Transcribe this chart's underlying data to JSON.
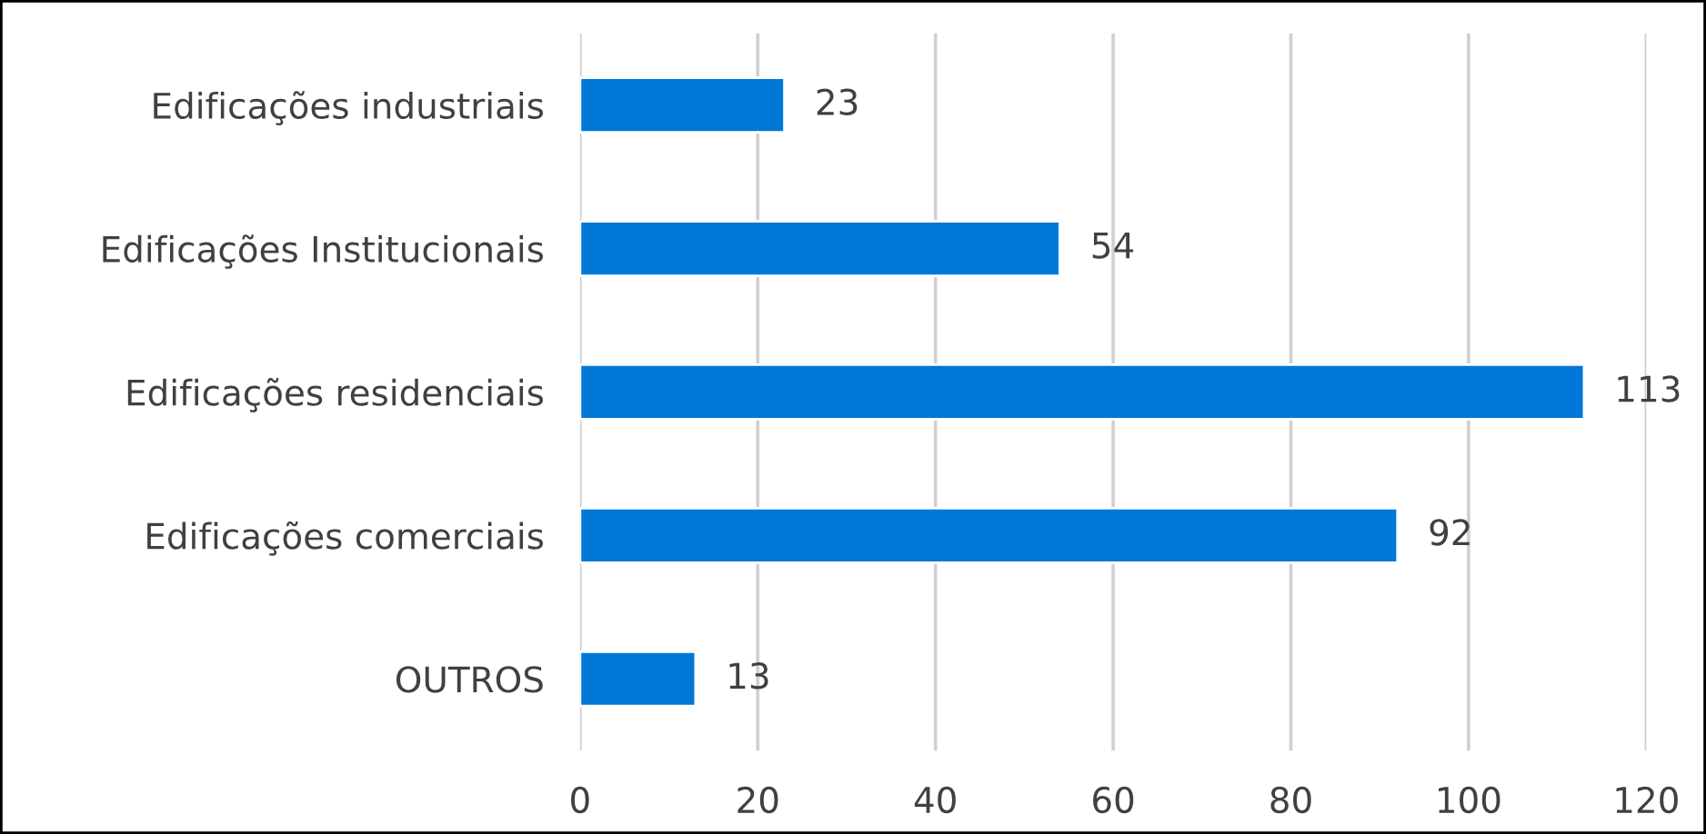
{
  "chart_data": {
    "type": "bar",
    "orientation": "horizontal",
    "categories": [
      "Edificações industriais",
      "Edificações Institucionais",
      "Edificações residenciais",
      "Edificações comerciais",
      "OUTROS"
    ],
    "values": [
      23,
      54,
      113,
      92,
      13
    ],
    "color": "#0078d7",
    "xlim": [
      0,
      120
    ],
    "xticks": [
      0,
      20,
      40,
      60,
      80,
      100,
      120
    ],
    "grid": "x",
    "data_labels": true
  }
}
